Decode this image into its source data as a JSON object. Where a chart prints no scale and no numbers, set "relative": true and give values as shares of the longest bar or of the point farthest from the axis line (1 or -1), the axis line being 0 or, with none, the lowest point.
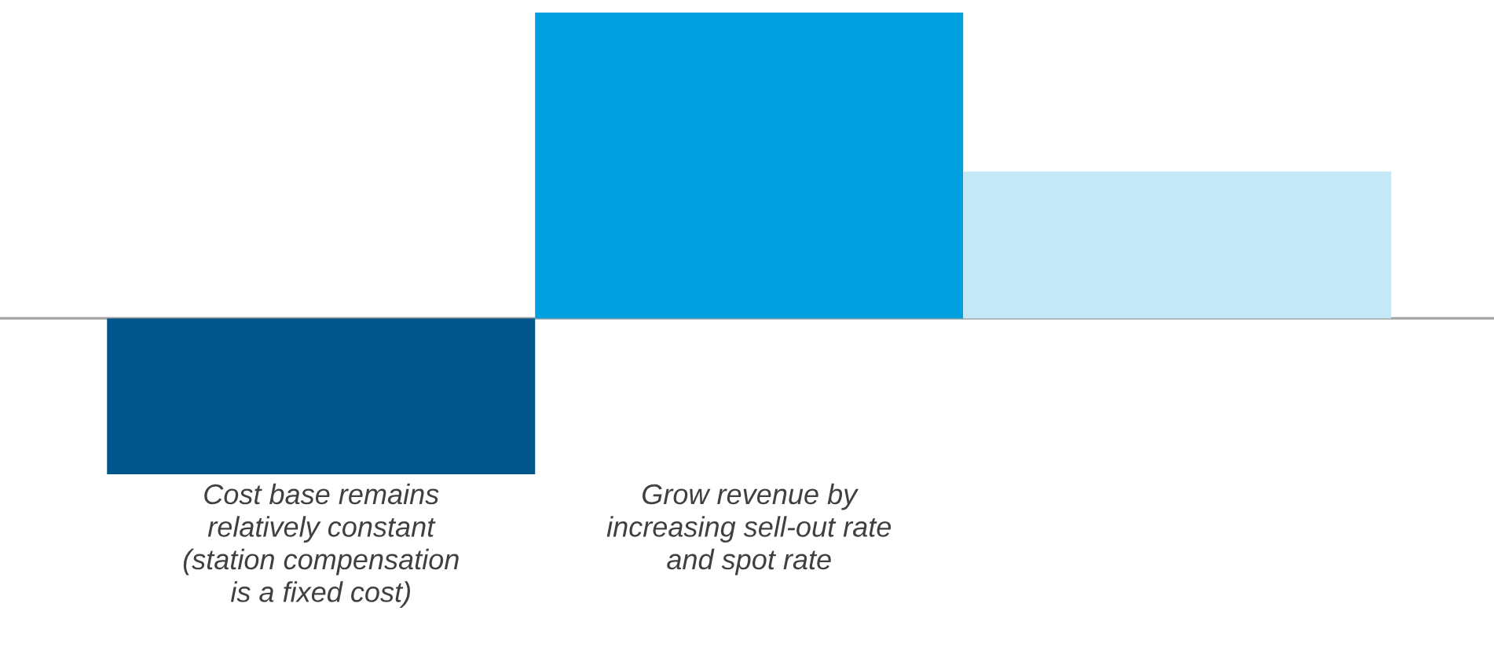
{
  "chart_data": {
    "type": "bar",
    "relative": true,
    "categories": [
      "Cost base remains\nrelatively constant\n(station compensation\nis a fixed cost)",
      "Grow revenue by\nincreasing sell-out rate\nand spot rate",
      null
    ],
    "values": [
      -0.51,
      1,
      0.48
    ],
    "colors": [
      "#00558a",
      "#009fe0",
      "#c5e8f7"
    ],
    "legend": false
  }
}
